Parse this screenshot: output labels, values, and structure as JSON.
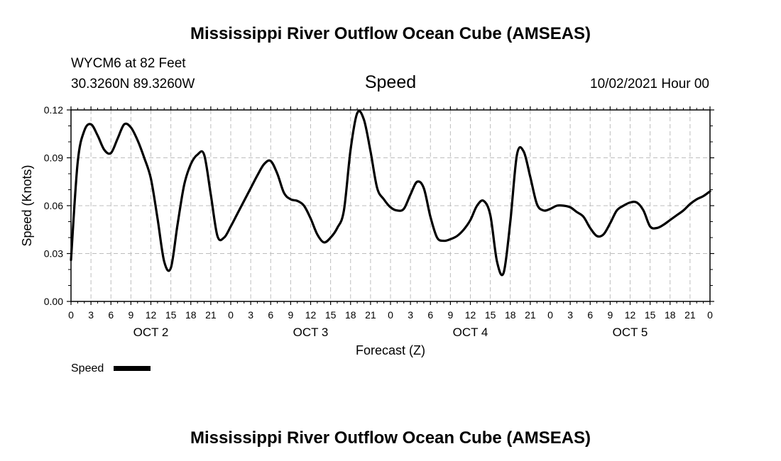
{
  "header": {
    "title": "Mississippi River Outflow Ocean Cube (AMSEAS)",
    "station": "WYCM6 at 82 Feet",
    "coords": "30.3260N  89.3260W",
    "datetime": "10/02/2021 Hour 00"
  },
  "footer": {
    "title": "Mississippi River Outflow Ocean Cube (AMSEAS)"
  },
  "chart_data": {
    "type": "line",
    "title": "Speed",
    "xlabel": "Forecast (Z)",
    "ylabel": "Speed (Knots)",
    "ylim": [
      0,
      0.12
    ],
    "xlim": [
      0,
      96
    ],
    "x_unit": "hours from 10/02/2021 00Z",
    "y_ticks": [
      "0.00",
      "0.03",
      "0.06",
      "0.09",
      "0.12"
    ],
    "x_tick_labels": [
      "0",
      "3",
      "6",
      "9",
      "12",
      "15",
      "18",
      "21",
      "0",
      "3",
      "6",
      "9",
      "12",
      "15",
      "18",
      "21",
      "0",
      "3",
      "6",
      "9",
      "12",
      "15",
      "18",
      "21",
      "0",
      "3",
      "6",
      "9",
      "12",
      "15",
      "18",
      "21",
      "0"
    ],
    "day_labels": [
      "OCT 2",
      "OCT 3",
      "OCT 4",
      "OCT 5"
    ],
    "grid": true,
    "legend": {
      "position": "bottom-left",
      "label": "Speed"
    },
    "series": [
      {
        "name": "Speed",
        "color": "#000000",
        "x": [
          0,
          1,
          2,
          3,
          4,
          5,
          6,
          7,
          8,
          9,
          10,
          11,
          12,
          13,
          14,
          15,
          16,
          17,
          18,
          19,
          20,
          21,
          22,
          23,
          24,
          25,
          26,
          27,
          28,
          29,
          30,
          31,
          32,
          33,
          34,
          35,
          36,
          37,
          38,
          39,
          40,
          41,
          42,
          43,
          44,
          45,
          46,
          47,
          48,
          49,
          50,
          51,
          52,
          53,
          54,
          55,
          56,
          57,
          58,
          59,
          60,
          61,
          62,
          63,
          64,
          65,
          66,
          67,
          68,
          69,
          70,
          71,
          72,
          73,
          74,
          75,
          76,
          77,
          78,
          79,
          80,
          81,
          82,
          83,
          84,
          85,
          86,
          87,
          88,
          89,
          90,
          91,
          92,
          93,
          94,
          95,
          96
        ],
        "values": [
          0.026,
          0.087,
          0.107,
          0.111,
          0.104,
          0.095,
          0.093,
          0.102,
          0.111,
          0.109,
          0.101,
          0.09,
          0.077,
          0.052,
          0.025,
          0.021,
          0.048,
          0.073,
          0.086,
          0.092,
          0.092,
          0.067,
          0.041,
          0.04,
          0.047,
          0.055,
          0.063,
          0.071,
          0.079,
          0.086,
          0.088,
          0.08,
          0.068,
          0.064,
          0.063,
          0.06,
          0.052,
          0.042,
          0.037,
          0.04,
          0.046,
          0.057,
          0.095,
          0.118,
          0.114,
          0.094,
          0.071,
          0.064,
          0.059,
          0.057,
          0.058,
          0.067,
          0.075,
          0.071,
          0.053,
          0.04,
          0.038,
          0.039,
          0.041,
          0.045,
          0.051,
          0.06,
          0.063,
          0.054,
          0.025,
          0.018,
          0.05,
          0.092,
          0.094,
          0.078,
          0.061,
          0.057,
          0.058,
          0.06,
          0.06,
          0.059,
          0.056,
          0.053,
          0.046,
          0.041,
          0.042,
          0.049,
          0.057,
          0.06,
          0.062,
          0.062,
          0.057,
          0.047,
          0.046,
          0.048,
          0.051,
          0.054,
          0.057,
          0.061,
          0.064,
          0.066,
          0.069
        ]
      }
    ]
  }
}
